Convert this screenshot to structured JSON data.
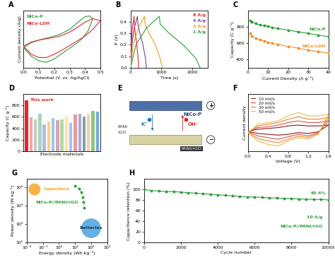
{
  "chart_data": [
    {
      "type": "line",
      "title": "A",
      "x_label": "Potential (V. vs. Ag/AgCl)",
      "y_label": "Current density (A/g)",
      "xlim": [
        0,
        0.5
      ],
      "xticks": [
        {
          "value": 0,
          "label": "0.0"
        },
        0.1,
        0.2,
        0.3,
        0.4,
        0.5
      ],
      "ylim": [
        -35,
        50
      ],
      "tick_labels": "x",
      "series": [
        {
          "name": "NiCo-P",
          "color": "#2e9e3a",
          "x": [
            0,
            0.05,
            0.1,
            0.15,
            0.2,
            0.25,
            0.3,
            0.35,
            0.4,
            0.43,
            0.45,
            0.42,
            0.38,
            0.35,
            0.3,
            0.25,
            0.2,
            0.15,
            0.1,
            0.05,
            0
          ],
          "values": [
            -5,
            2,
            6,
            9,
            12,
            16,
            22,
            32,
            41,
            42,
            38,
            20,
            8,
            2,
            -6,
            -14,
            -22,
            -27,
            -25,
            -18,
            -5
          ]
        },
        {
          "name": "NiCo-LDH",
          "color": "#e8242a",
          "x": [
            0,
            0.05,
            0.1,
            0.15,
            0.2,
            0.25,
            0.3,
            0.35,
            0.4,
            0.45,
            0.5,
            0.45,
            0.4,
            0.35,
            0.3,
            0.25,
            0.2,
            0.15,
            0.1,
            0.05,
            0
          ],
          "values": [
            -3,
            3,
            6,
            8,
            10,
            13,
            18,
            25,
            33,
            38,
            35,
            22,
            12,
            5,
            -2,
            -9,
            -15,
            -20,
            -20,
            -15,
            -3
          ]
        }
      ]
    },
    {
      "type": "line",
      "title": "B",
      "x_label": "Time (s)",
      "y_label": "E (V)",
      "xlim": [
        0,
        2500
      ],
      "xticks": [
        0,
        1000,
        2000
      ],
      "ylim": [
        0,
        0.5
      ],
      "yticks": [
        {
          "value": 0,
          "label": "0.0"
        },
        0.1,
        0.2,
        0.3,
        0.4
      ],
      "series": [
        {
          "name": "8 A/g",
          "color": "#e8242a",
          "x": [
            0,
            20,
            60,
            110,
            120,
            150,
            200,
            240,
            260
          ],
          "values": [
            0,
            0.2,
            0.35,
            0.45,
            0.38,
            0.3,
            0.2,
            0.08,
            0
          ]
        },
        {
          "name": "4 A/g",
          "color": "#7b3fa0",
          "x": [
            0,
            40,
            120,
            220,
            235,
            300,
            400,
            480,
            510
          ],
          "values": [
            0,
            0.2,
            0.35,
            0.45,
            0.38,
            0.3,
            0.2,
            0.08,
            0
          ]
        },
        {
          "name": "2 A/g",
          "color": "#f39c12",
          "x": [
            0,
            80,
            250,
            450,
            470,
            600,
            800,
            960,
            1020
          ],
          "values": [
            0,
            0.2,
            0.35,
            0.45,
            0.38,
            0.3,
            0.2,
            0.08,
            0
          ]
        },
        {
          "name": "1 A/g",
          "color": "#2e9e3a",
          "x": [
            0,
            170,
            520,
            930,
            960,
            1250,
            1700,
            2120,
            2250
          ],
          "values": [
            0,
            0.2,
            0.35,
            0.45,
            0.38,
            0.3,
            0.2,
            0.08,
            0
          ]
        }
      ]
    },
    {
      "type": "line",
      "title": "C",
      "x_label": "Current Density (A g⁻¹)",
      "y_label": "Capacity (C g⁻¹)",
      "xlim": [
        0,
        40
      ],
      "xticks": [
        0,
        10,
        20,
        30,
        40
      ],
      "ylim": [
        300,
        1000
      ],
      "yticks": [
        400,
        600,
        800
      ],
      "x": [
        1,
        2,
        4,
        6,
        8,
        10,
        12,
        15,
        20,
        25,
        30,
        35,
        40
      ],
      "series": [
        {
          "name": "NiCo-P",
          "color": "#2e9e3a",
          "marker": "circle",
          "values": [
            880,
            860,
            840,
            825,
            815,
            805,
            795,
            780,
            760,
            740,
            720,
            700,
            680
          ]
        },
        {
          "name": "NiCo-LDH",
          "color": "#f28e2b",
          "marker": "circle",
          "values": [
            720,
            690,
            660,
            640,
            625,
            610,
            600,
            585,
            560,
            540,
            515,
            495,
            480
          ]
        }
      ]
    },
    {
      "type": "bar",
      "title": "D",
      "x_label": "Electrode materials",
      "y_label": "Capacity (C g⁻¹)",
      "ylim": [
        0,
        1000
      ],
      "yticks": [
        0,
        200,
        400,
        600,
        800
      ],
      "tick_labels": "y",
      "categories": [
        null,
        null,
        null,
        null,
        null,
        null,
        null,
        null,
        null,
        null,
        null,
        null,
        null,
        null,
        null,
        null,
        null
      ],
      "values": [
        890,
        590,
        560,
        650,
        470,
        520,
        580,
        540,
        560,
        600,
        490,
        640,
        660,
        600,
        640,
        700,
        690
      ],
      "colors": [
        "#e8242a",
        "#f4a6a6",
        "#c9c9c9",
        "#a8d5ba",
        "#b7b7e0",
        "#f7d08a",
        "#9fc5e8",
        "#d5a6bd",
        "#b6d7a8",
        "#ffe599",
        "#a4c2f4",
        "#ea9999",
        "#b4a7d6",
        "#76a5af",
        "#f9cb9c",
        "#93c47d",
        "#6fa8dc"
      ],
      "annotations": [
        "This work"
      ]
    },
    {
      "type": "diagram",
      "title": "E",
      "electrodes": [
        {
          "label": "NiCo-P",
          "sign": "+"
        },
        {
          "label": "PANI/rGO",
          "sign": "−"
        }
      ],
      "ions": [
        "OH⁻",
        "K⁺"
      ],
      "materials": [
        "PANI",
        "rGO"
      ]
    },
    {
      "type": "line",
      "title": "F",
      "x_label": "Voltage (V)",
      "y_label": "Current density",
      "xlim": [
        0,
        1.6
      ],
      "xticks": [
        {
          "value": 0,
          "label": "0.0"
        },
        0.4,
        0.8,
        1.2,
        1.6
      ],
      "ylim": [
        -12,
        22
      ],
      "tick_labels": "x",
      "legend": "upper left",
      "x": [
        0,
        0.2,
        0.4,
        0.6,
        0.8,
        1.0,
        1.2,
        1.4,
        1.6,
        1.4,
        1.2,
        1.0,
        0.8,
        0.6,
        0.4,
        0.2,
        0
      ],
      "series": [
        {
          "name": "10 mV/s",
          "color": "#8b1a1a",
          "values": [
            -0.3,
            1,
            1.5,
            2,
            3,
            3.5,
            3,
            3,
            3.5,
            -0.5,
            -1.5,
            -1,
            -2,
            -2.5,
            -2,
            -1.5,
            -0.3
          ]
        },
        {
          "name": "20 mV/s",
          "color": "#d9534f",
          "values": [
            -0.5,
            2,
            2.5,
            3.5,
            5,
            6,
            5,
            5,
            6,
            -1,
            -3,
            -2,
            -3.5,
            -5,
            -4,
            -3,
            -0.5
          ]
        },
        {
          "name": "30 mV/s",
          "color": "#e8862a",
          "values": [
            -1,
            3,
            4,
            5,
            7,
            8.5,
            7,
            7,
            8,
            -1.5,
            -4,
            -3,
            -5,
            -7,
            -6,
            -4.5,
            -1
          ]
        },
        {
          "name": "50 mV/s",
          "color": "#f2b84b",
          "values": [
            -1,
            4,
            5,
            6,
            9,
            11,
            9,
            9,
            10,
            -2,
            -5,
            -4,
            -6,
            -9,
            -8,
            -6,
            -1
          ]
        }
      ]
    },
    {
      "type": "line",
      "title": "G",
      "x_label": "Energy density (Wh kg⁻¹)",
      "y_label": "Power density (W kg⁻¹)",
      "log": true,
      "xlim": [
        0.01,
        1000
      ],
      "xticks": [
        {
          "value": 0.01,
          "label": "10⁻²"
        },
        {
          "value": 0.1,
          "label": "10⁻¹"
        },
        {
          "value": 1,
          "label": "10⁰"
        },
        {
          "value": 10,
          "label": "10¹"
        },
        {
          "value": 100,
          "label": "10²"
        },
        {
          "value": 1000,
          "label": "10³"
        }
      ],
      "ylim": [
        10,
        30000
      ],
      "yticks": [
        {
          "value": 10,
          "label": "10¹"
        },
        {
          "value": 100,
          "label": "10²"
        },
        {
          "value": 1000,
          "label": "10³"
        },
        {
          "value": 10000,
          "label": "10⁴"
        }
      ],
      "series": [
        {
          "name": "Capacitors",
          "type": "scatter",
          "color": "#f5a623",
          "marker": "circle",
          "x": [
            0.03
          ],
          "values": [
            8000
          ]
        },
        {
          "name": "Batteries",
          "type": "scatter",
          "color": "#4aa3df",
          "marker": "circle",
          "x": [
            100
          ],
          "values": [
            60
          ]
        },
        {
          "name": "NiCo-P//PANI/rGO",
          "color": "#2e9e3a",
          "marker": "circle",
          "line_style": "dotted",
          "x": [
            35,
            33,
            30,
            25,
            18,
            10
          ],
          "values": [
            800,
            1600,
            3000,
            5500,
            9000,
            13000
          ]
        }
      ]
    },
    {
      "type": "line",
      "title": "H",
      "x_label": "Cycle number",
      "y_label": "Capacitance retention (%)",
      "xlim": [
        0,
        10000
      ],
      "xticks": [
        0,
        2000,
        4000,
        6000,
        8000,
        10000
      ],
      "ylim": [
        0,
        120
      ],
      "yticks": [
        0,
        20,
        40,
        60,
        80,
        100
      ],
      "x": [
        0,
        400,
        800,
        1200,
        1600,
        2000,
        2400,
        2800,
        3200,
        3600,
        4000,
        4400,
        4800,
        5200,
        5600,
        6000,
        6400,
        6800,
        7200,
        7600,
        8000,
        8400,
        8800,
        9200,
        9600,
        10000
      ],
      "series": [
        {
          "name": "NiCo-P//PANI/rGO",
          "color": "#2e9e3a",
          "marker": "circle",
          "values": [
            100,
            98,
            97,
            96,
            96,
            95,
            94,
            93,
            92,
            91,
            90,
            89,
            88,
            87,
            86,
            86,
            85,
            84,
            84,
            83,
            83,
            82,
            82,
            81,
            81,
            80.4
          ]
        }
      ],
      "annotations": [
        "10 A/g",
        "80.4%"
      ]
    }
  ]
}
